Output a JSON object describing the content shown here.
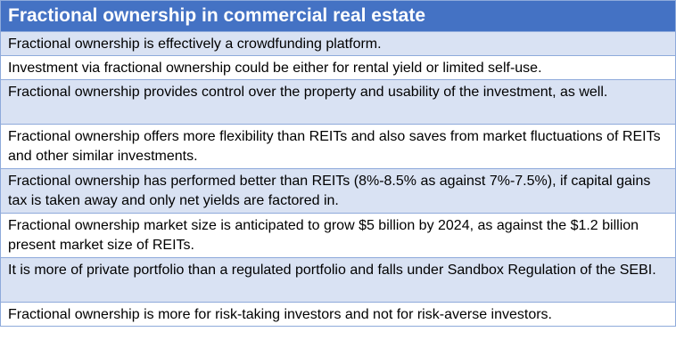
{
  "table": {
    "title": "Fractional ownership in commercial real estate",
    "rows": [
      "Fractional ownership is effectively a crowdfunding platform.",
      "Investment via fractional ownership could be either for rental yield or limited self-use.",
      "Fractional ownership provides control over the property and usability of the investment, as well.",
      "Fractional ownership offers more flexibility than REITs and also saves from market fluctuations of REITs and other similar investments.",
      "Fractional ownership has performed better than REITs (8%-8.5% as against 7%-7.5%), if capital gains tax is taken away and only net yields are factored in.",
      "Fractional ownership market size is anticipated to grow $5 billion by 2024, as against the $1.2 billion present market size of REITs.",
      "It is more of private portfolio than a regulated portfolio and falls under Sandbox Regulation of the SEBI.",
      "Fractional ownership is more for risk-taking investors and not for risk-averse investors."
    ]
  },
  "colors": {
    "header_bg": "#4472c4",
    "header_text": "#ffffff",
    "band_row": "#d9e2f3",
    "plain_row": "#ffffff",
    "border": "#8eaadb"
  }
}
